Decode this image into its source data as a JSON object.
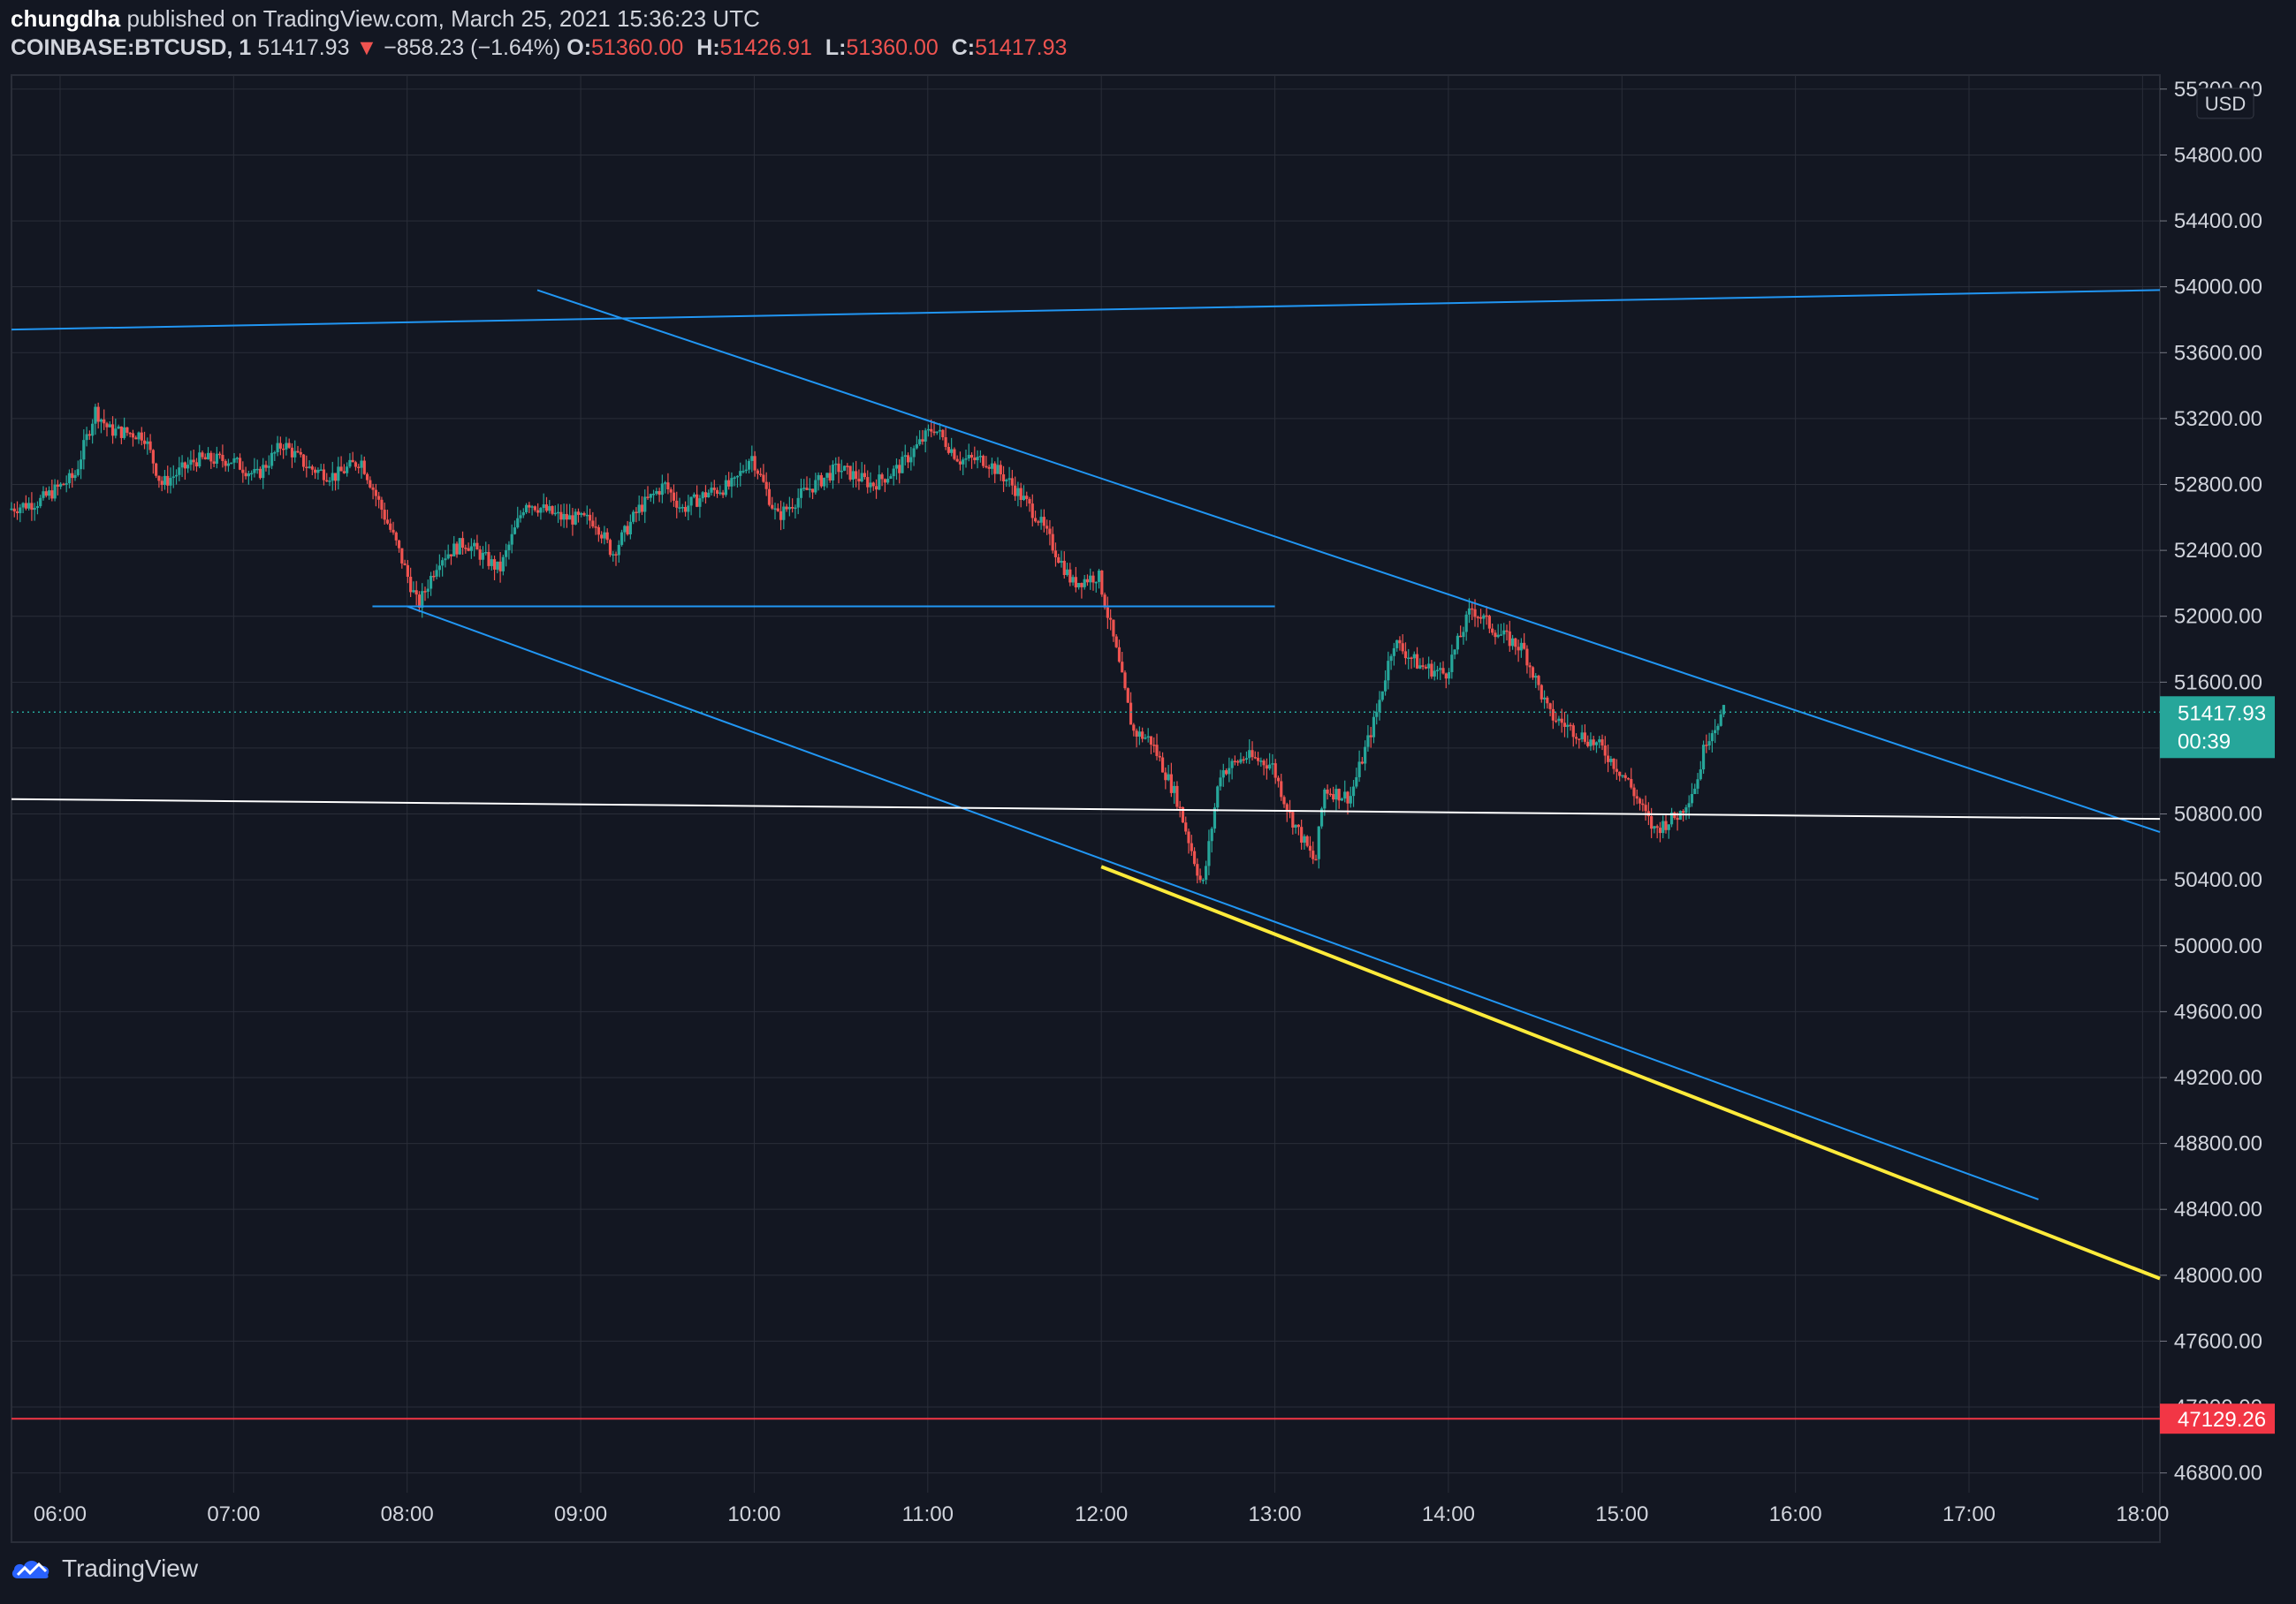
{
  "header": {
    "author": "chungdha",
    "published_text": "published on TradingView.com, March 25, 2021 15:36:23 UTC",
    "symbol": "COINBASE:BTCUSD, 1",
    "last_price": "51417.93",
    "change_arrow": "▼",
    "change": "−858.23 (−1.64%)",
    "o_label": "O:",
    "o_value": "51360.00",
    "h_label": "H:",
    "h_value": "51426.91",
    "l_label": "L:",
    "l_value": "51360.00",
    "c_label": "C:",
    "c_value": "51417.93"
  },
  "footer": {
    "brand": "TradingView"
  },
  "colors": {
    "background": "#131722",
    "grid": "#2a2e39",
    "up": "#26a69a",
    "down": "#ef5350",
    "trendline": "#2196f3",
    "support_white": "#ffffff",
    "support_yellow": "#ffeb3b",
    "level_red": "#f23645"
  },
  "chart_data": {
    "type": "candlestick",
    "currency_label": "USD",
    "x_axis": {
      "ticks": [
        "06:00",
        "07:00",
        "08:00",
        "09:00",
        "10:00",
        "11:00",
        "12:00",
        "13:00",
        "14:00",
        "15:00",
        "16:00",
        "17:00",
        "18:00"
      ],
      "range_hours": [
        5.72,
        18.1
      ]
    },
    "y_axis": {
      "ticks": [
        "55200.00",
        "54800.00",
        "54400.00",
        "54000.00",
        "53600.00",
        "53200.00",
        "52800.00",
        "52400.00",
        "52000.00",
        "51600.00",
        "51200.00",
        "50800.00",
        "50400.00",
        "50000.00",
        "49600.00",
        "49200.00",
        "48800.00",
        "48400.00",
        "48000.00",
        "47600.00",
        "47200.00",
        "46800.00"
      ],
      "range": [
        46680,
        55285
      ]
    },
    "price_key_points": [
      [
        5.72,
        52650
      ],
      [
        5.9,
        52700
      ],
      [
        6.1,
        52850
      ],
      [
        6.22,
        53250
      ],
      [
        6.3,
        53130
      ],
      [
        6.5,
        53100
      ],
      [
        6.6,
        52800
      ],
      [
        6.8,
        52950
      ],
      [
        7.0,
        52950
      ],
      [
        7.15,
        52850
      ],
      [
        7.3,
        53050
      ],
      [
        7.45,
        52900
      ],
      [
        7.6,
        52850
      ],
      [
        7.75,
        52950
      ],
      [
        7.95,
        52450
      ],
      [
        8.08,
        52060
      ],
      [
        8.2,
        52350
      ],
      [
        8.35,
        52450
      ],
      [
        8.55,
        52280
      ],
      [
        8.7,
        52700
      ],
      [
        8.9,
        52600
      ],
      [
        9.1,
        52580
      ],
      [
        9.2,
        52380
      ],
      [
        9.35,
        52650
      ],
      [
        9.5,
        52800
      ],
      [
        9.6,
        52650
      ],
      [
        9.75,
        52750
      ],
      [
        9.9,
        52800
      ],
      [
        10.0,
        52980
      ],
      [
        10.15,
        52600
      ],
      [
        10.3,
        52750
      ],
      [
        10.5,
        52900
      ],
      [
        10.7,
        52800
      ],
      [
        10.85,
        52900
      ],
      [
        11.05,
        53150
      ],
      [
        11.2,
        52950
      ],
      [
        11.35,
        52950
      ],
      [
        11.5,
        52800
      ],
      [
        11.65,
        52600
      ],
      [
        11.85,
        52200
      ],
      [
        12.0,
        52250
      ],
      [
        12.1,
        51800
      ],
      [
        12.2,
        51300
      ],
      [
        12.3,
        51250
      ],
      [
        12.45,
        50900
      ],
      [
        12.6,
        50350
      ],
      [
        12.7,
        51050
      ],
      [
        12.85,
        51150
      ],
      [
        13.0,
        51100
      ],
      [
        13.1,
        50800
      ],
      [
        13.25,
        50500
      ],
      [
        13.3,
        50950
      ],
      [
        13.45,
        50900
      ],
      [
        13.6,
        51400
      ],
      [
        13.7,
        51850
      ],
      [
        13.85,
        51700
      ],
      [
        14.0,
        51650
      ],
      [
        14.15,
        52050
      ],
      [
        14.3,
        51900
      ],
      [
        14.45,
        51800
      ],
      [
        14.6,
        51400
      ],
      [
        14.75,
        51300
      ],
      [
        14.9,
        51200
      ],
      [
        15.05,
        51000
      ],
      [
        15.2,
        50700
      ],
      [
        15.35,
        50800
      ],
      [
        15.45,
        51000
      ],
      [
        15.5,
        51250
      ],
      [
        15.6,
        51417.93
      ]
    ],
    "last_price": 51417.93,
    "last_price_label": "51417.93",
    "countdown": "00:39",
    "marked_level": 47129.26,
    "marked_level_label": "47129.26",
    "drawings": [
      {
        "name": "upper-horizontal-trendline",
        "color": "trendline",
        "from": [
          5.72,
          53740
        ],
        "to": [
          18.1,
          53980
        ]
      },
      {
        "name": "upper-descending-trendline",
        "color": "trendline",
        "from": [
          8.75,
          53980
        ],
        "to": [
          18.1,
          50690
        ]
      },
      {
        "name": "horizontal-support-line",
        "color": "trendline",
        "from": [
          7.8,
          52060
        ],
        "to": [
          13.0,
          52060
        ]
      },
      {
        "name": "lower-descending-trendline",
        "color": "trendline",
        "from": [
          8.0,
          52060
        ],
        "to": [
          17.4,
          48460
        ]
      },
      {
        "name": "white-support-line",
        "color": "support_white",
        "from": [
          5.72,
          50890
        ],
        "to": [
          18.1,
          50770
        ]
      },
      {
        "name": "yellow-support-line",
        "color": "support_yellow",
        "from": [
          12.0,
          50480
        ],
        "to": [
          18.1,
          47980
        ]
      }
    ]
  }
}
